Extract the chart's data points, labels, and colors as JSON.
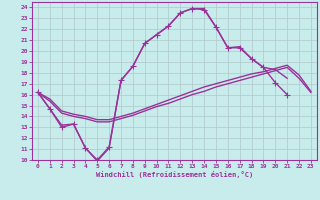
{
  "xlabel": "Windchill (Refroidissement éolien,°C)",
  "xlim": [
    -0.5,
    23.5
  ],
  "ylim": [
    10,
    24.5
  ],
  "xticks": [
    0,
    1,
    2,
    3,
    4,
    5,
    6,
    7,
    8,
    9,
    10,
    11,
    12,
    13,
    14,
    15,
    16,
    17,
    18,
    19,
    20,
    21,
    22,
    23
  ],
  "yticks": [
    10,
    11,
    12,
    13,
    14,
    15,
    16,
    17,
    18,
    19,
    20,
    21,
    22,
    23,
    24
  ],
  "bg_color": "#c8ecec",
  "grid_color": "#b0c8c8",
  "line_color": "#993399",
  "spine_color": "#993399",
  "lines": [
    {
      "x": [
        0,
        1,
        2,
        3,
        4,
        5,
        6,
        7,
        8,
        9,
        10,
        11,
        12,
        13,
        14,
        15,
        16,
        17,
        18,
        19,
        20,
        21
      ],
      "y": [
        16.2,
        14.7,
        13.0,
        13.3,
        11.1,
        10.0,
        11.2,
        17.3,
        18.6,
        20.7,
        21.5,
        22.3,
        23.5,
        23.9,
        23.8,
        22.2,
        20.3,
        20.3,
        19.3,
        18.5,
        17.1,
        16.0
      ],
      "marker": "+",
      "markersize": 4,
      "linewidth": 1.0,
      "has_marker": true
    },
    {
      "x": [
        0,
        1,
        2,
        3,
        4,
        5,
        6,
        7,
        8,
        9,
        10,
        11,
        12,
        13,
        14,
        15,
        16,
        17,
        18,
        19,
        20,
        21
      ],
      "y": [
        16.2,
        14.7,
        13.2,
        13.3,
        11.1,
        9.9,
        11.1,
        17.3,
        18.6,
        20.7,
        21.5,
        22.3,
        23.5,
        23.9,
        23.9,
        22.2,
        20.3,
        20.4,
        19.3,
        18.5,
        18.3,
        17.5
      ],
      "marker": null,
      "markersize": 0,
      "linewidth": 1.0,
      "has_marker": false
    },
    {
      "x": [
        0,
        1,
        2,
        3,
        4,
        5,
        6,
        7,
        8,
        9,
        10,
        11,
        12,
        13,
        14,
        15,
        16,
        17,
        18,
        19,
        20,
        21,
        22,
        23
      ],
      "y": [
        16.2,
        15.4,
        14.3,
        14.0,
        13.8,
        13.5,
        13.5,
        13.8,
        14.1,
        14.5,
        14.9,
        15.2,
        15.6,
        16.0,
        16.3,
        16.7,
        17.0,
        17.3,
        17.6,
        17.9,
        18.2,
        18.5,
        17.5,
        16.2
      ],
      "marker": null,
      "markersize": 0,
      "linewidth": 1.0,
      "has_marker": false
    },
    {
      "x": [
        0,
        1,
        2,
        3,
        4,
        5,
        6,
        7,
        8,
        9,
        10,
        11,
        12,
        13,
        14,
        15,
        16,
        17,
        18,
        19,
        20,
        21,
        22,
        23
      ],
      "y": [
        16.2,
        15.6,
        14.5,
        14.2,
        14.0,
        13.7,
        13.7,
        14.0,
        14.3,
        14.7,
        15.1,
        15.5,
        15.9,
        16.3,
        16.7,
        17.0,
        17.3,
        17.6,
        17.9,
        18.1,
        18.4,
        18.7,
        17.8,
        16.3
      ],
      "marker": null,
      "markersize": 0,
      "linewidth": 1.0,
      "has_marker": false
    }
  ]
}
